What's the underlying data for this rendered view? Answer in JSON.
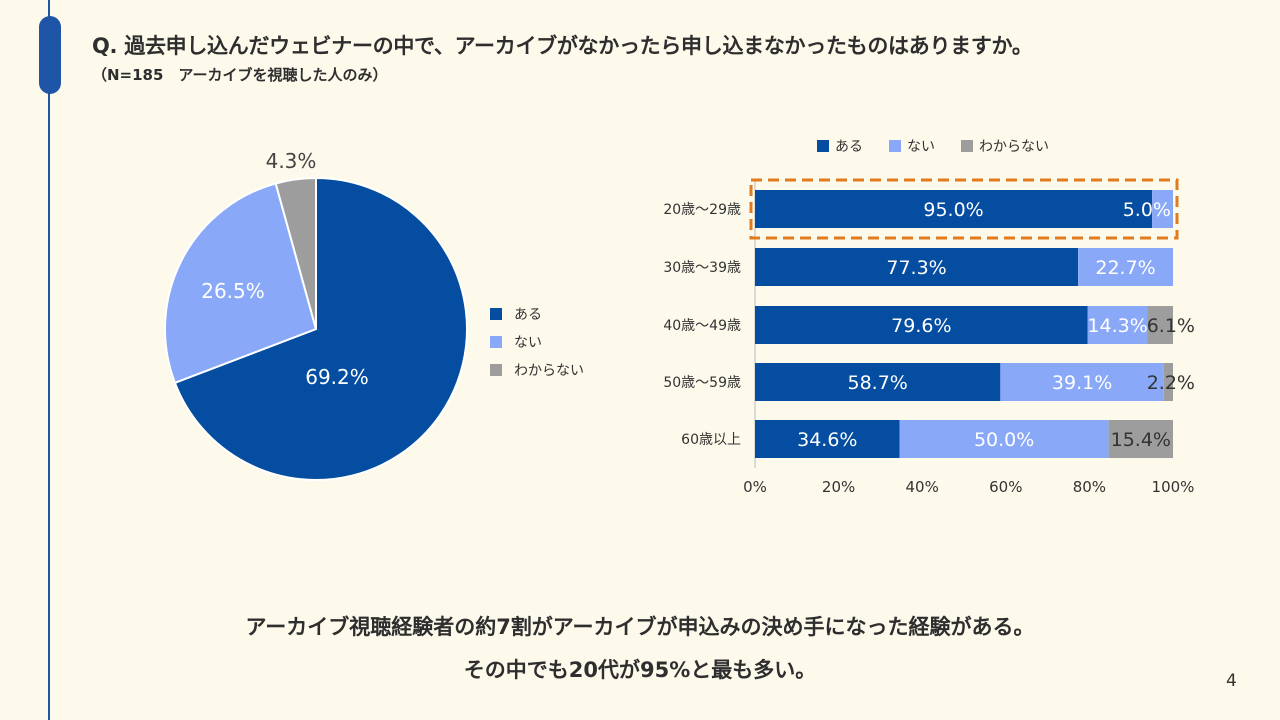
{
  "question": {
    "title": "Q. 過去申し込んだウェビナーの中で、アーカイブがなかったら申し込まなかったものはありますか。",
    "note": "（N=185　アーカイブを視聴した人のみ）"
  },
  "colors": {
    "aru": "#044da0",
    "nai": "#89a9f8",
    "wakaranai": "#9d9d9d",
    "highlight": "#e07b20",
    "background": "#fdfaec"
  },
  "chart_data": [
    {
      "type": "pie",
      "title": "",
      "slices": [
        {
          "label": "ある",
          "value": 69.2,
          "display": "69.2%"
        },
        {
          "label": "ない",
          "value": 26.5,
          "display": "26.5%"
        },
        {
          "label": "わからない",
          "value": 4.3,
          "display": "4.3%"
        }
      ],
      "legend": [
        "ある",
        "ない",
        "わからない"
      ],
      "legend_position": "right"
    },
    {
      "type": "bar",
      "orientation": "horizontal",
      "stacked": "percent",
      "categories": [
        "20歳～29歳",
        "30歳～39歳",
        "40歳～49歳",
        "50歳～59歳",
        "60歳以上"
      ],
      "series": [
        {
          "name": "ある",
          "values": [
            95.0,
            77.3,
            79.6,
            58.7,
            34.6
          ],
          "labels": [
            "95.0%",
            "77.3%",
            "79.6%",
            "58.7%",
            "34.6%"
          ]
        },
        {
          "name": "ない",
          "values": [
            5.0,
            22.7,
            14.3,
            39.1,
            50.0
          ],
          "labels": [
            "5.0%",
            "22.7%",
            "14.3%",
            "39.1%",
            "50.0%"
          ]
        },
        {
          "name": "わからない",
          "values": [
            0,
            0,
            6.1,
            2.2,
            15.4
          ],
          "labels": [
            "",
            "",
            "6.1%",
            "2.2%",
            "15.4%"
          ]
        }
      ],
      "xlim": [
        0,
        100
      ],
      "xticks": [
        "0%",
        "20%",
        "40%",
        "60%",
        "80%",
        "100%"
      ],
      "legend_position": "top",
      "highlighted_category": "20歳～29歳"
    }
  ],
  "summary": {
    "line1": "アーカイブ視聴経験者の約7割がアーカイブが申込みの決め手になった経験がある。",
    "line2": "その中でも20代が95%と最も多い。"
  },
  "page_number": "4"
}
